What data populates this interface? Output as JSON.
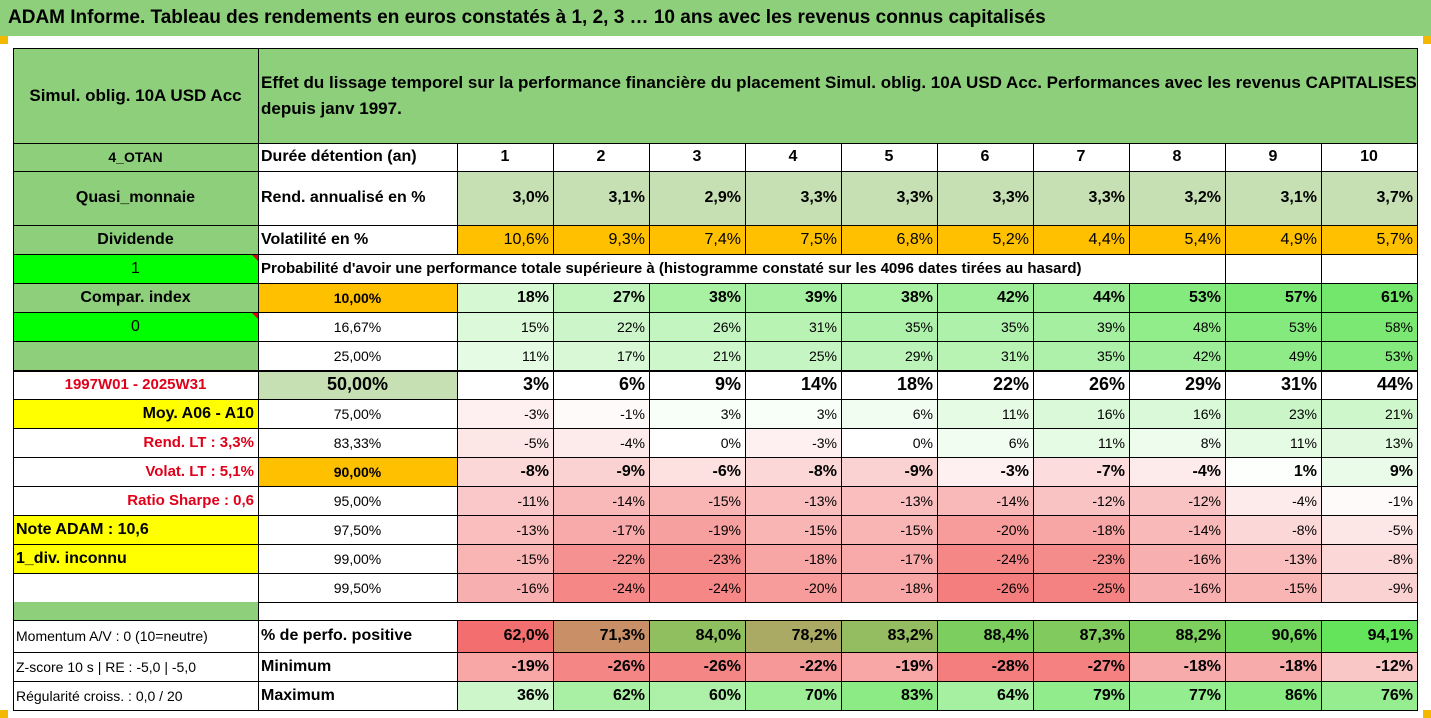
{
  "header": {
    "title": "ADAM Informe. Tableau des rendements en euros constatés à 1, 2, 3 … 10 ans avec les revenus connus capitalisés"
  },
  "fund": {
    "name": "Simul. oblig. 10A USD Acc",
    "description": "Effet du lissage temporel sur la performance financière du placement Simul. oblig. 10A USD Acc. Performances avec les revenus CAPITALISES depuis janv 1997."
  },
  "left_panel": {
    "otan": "4_OTAN",
    "quasi": "Quasi_monnaie",
    "dividende": "Dividende",
    "one": "1",
    "compar": "Compar. index",
    "zero": "0",
    "period": "1997W01 - 2025W31",
    "moy": "Moy. A06 - A10",
    "rend_lt": "Rend. LT :   3,3%",
    "volat_lt": "Volat. LT :   5,1%",
    "sharpe": "Ratio Sharpe :   0,6",
    "note": "Note ADAM : 10,6",
    "div": "1_div. inconnu",
    "momentum": "Momentum A/V : 0 (10=neutre)",
    "zscore": "Z-score 10 s  | RE : -5,0 | -5,0",
    "regularite": "Régularité croiss. : 0,0 / 20"
  },
  "table": {
    "duration_label": "Durée détention (an)",
    "years": [
      "1",
      "2",
      "3",
      "4",
      "5",
      "6",
      "7",
      "8",
      "9",
      "10"
    ],
    "rend_label": "Rend. annualisé en %",
    "rend": [
      "3,0%",
      "3,1%",
      "2,9%",
      "3,3%",
      "3,3%",
      "3,3%",
      "3,3%",
      "3,2%",
      "3,1%",
      "3,7%"
    ],
    "vol_label": "Volatilité en %",
    "vol": [
      "10,6%",
      "9,3%",
      "7,4%",
      "7,5%",
      "6,8%",
      "5,2%",
      "4,4%",
      "5,4%",
      "4,9%",
      "5,7%"
    ],
    "prob_title": "Probabilité d'avoir une performance totale supérieure à (histogramme constaté sur les 4096 dates tirées au hasard)",
    "percentiles": [
      {
        "label": "10,00%",
        "values": [
          "18%",
          "27%",
          "38%",
          "39%",
          "38%",
          "42%",
          "44%",
          "53%",
          "57%",
          "61%"
        ]
      },
      {
        "label": "16,67%",
        "values": [
          "15%",
          "22%",
          "26%",
          "31%",
          "35%",
          "35%",
          "39%",
          "48%",
          "53%",
          "58%"
        ]
      },
      {
        "label": "25,00%",
        "values": [
          "11%",
          "17%",
          "21%",
          "25%",
          "29%",
          "31%",
          "35%",
          "42%",
          "49%",
          "53%"
        ]
      },
      {
        "label": "50,00%",
        "values": [
          "3%",
          "6%",
          "9%",
          "14%",
          "18%",
          "22%",
          "26%",
          "29%",
          "31%",
          "44%"
        ]
      },
      {
        "label": "75,00%",
        "values": [
          "-3%",
          "-1%",
          "3%",
          "3%",
          "6%",
          "11%",
          "16%",
          "16%",
          "23%",
          "21%"
        ]
      },
      {
        "label": "83,33%",
        "values": [
          "-5%",
          "-4%",
          "0%",
          "-3%",
          "0%",
          "6%",
          "11%",
          "8%",
          "11%",
          "13%"
        ]
      },
      {
        "label": "90,00%",
        "values": [
          "-8%",
          "-9%",
          "-6%",
          "-8%",
          "-9%",
          "-3%",
          "-7%",
          "-4%",
          "1%",
          "9%"
        ]
      },
      {
        "label": "95,00%",
        "values": [
          "-11%",
          "-14%",
          "-15%",
          "-13%",
          "-13%",
          "-14%",
          "-12%",
          "-12%",
          "-4%",
          "-1%"
        ]
      },
      {
        "label": "97,50%",
        "values": [
          "-13%",
          "-17%",
          "-19%",
          "-15%",
          "-15%",
          "-20%",
          "-18%",
          "-14%",
          "-8%",
          "-5%"
        ]
      },
      {
        "label": "99,00%",
        "values": [
          "-15%",
          "-22%",
          "-23%",
          "-18%",
          "-17%",
          "-24%",
          "-23%",
          "-16%",
          "-13%",
          "-8%"
        ]
      },
      {
        "label": "99,50%",
        "values": [
          "-16%",
          "-24%",
          "-24%",
          "-20%",
          "-18%",
          "-26%",
          "-25%",
          "-16%",
          "-15%",
          "-9%"
        ]
      }
    ],
    "pos_label": "% de perfo. positive",
    "pos": [
      "62,0%",
      "71,3%",
      "84,0%",
      "78,2%",
      "83,2%",
      "88,4%",
      "87,3%",
      "88,2%",
      "90,6%",
      "94,1%"
    ],
    "min_label": "Minimum",
    "min": [
      "-19%",
      "-26%",
      "-26%",
      "-22%",
      "-19%",
      "-28%",
      "-27%",
      "-18%",
      "-18%",
      "-12%"
    ],
    "max_label": "Maximum",
    "max": [
      "36%",
      "62%",
      "60%",
      "70%",
      "83%",
      "64%",
      "79%",
      "77%",
      "86%",
      "76%"
    ]
  },
  "colors": {
    "header_green": "#8ecf7c",
    "light_green": "#c6e0b4",
    "orange": "#ffc000",
    "bright_green": "#00ff00",
    "yellow": "#ffff00",
    "red_text": "#e0001a"
  }
}
